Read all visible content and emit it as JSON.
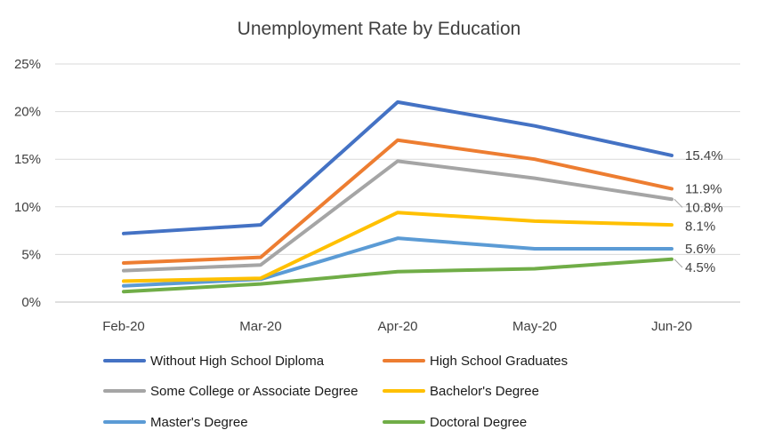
{
  "chart_data": {
    "type": "line",
    "title": "Unemployment Rate by Education",
    "xlabel": "",
    "ylabel": "",
    "categories": [
      "Feb-20",
      "Mar-20",
      "Apr-20",
      "May-20",
      "Jun-20"
    ],
    "ylim": [
      0,
      25
    ],
    "y_ticks": [
      "0%",
      "5%",
      "10%",
      "15%",
      "20%",
      "25%"
    ],
    "grid": true,
    "legend_position": "bottom",
    "series": [
      {
        "name": "Without High School Diploma",
        "color": "#4472C4",
        "values": [
          7.2,
          8.1,
          21.0,
          18.5,
          15.4
        ],
        "end_label": "15.4%"
      },
      {
        "name": "High School Graduates",
        "color": "#ED7D31",
        "values": [
          4.1,
          4.7,
          17.0,
          15.0,
          11.9
        ],
        "end_label": "11.9%"
      },
      {
        "name": "Some College or Associate Degree",
        "color": "#A5A5A5",
        "values": [
          3.3,
          3.9,
          14.8,
          13.0,
          10.8
        ],
        "end_label": "10.8%"
      },
      {
        "name": "Bachelor's Degree",
        "color": "#FFC000",
        "values": [
          2.2,
          2.5,
          9.4,
          8.5,
          8.1
        ],
        "end_label": "8.1%"
      },
      {
        "name": "Master's Degree",
        "color": "#5B9BD5",
        "values": [
          1.7,
          2.4,
          6.7,
          5.6,
          5.6
        ],
        "end_label": "5.6%"
      },
      {
        "name": "Doctoral Degree",
        "color": "#70AD47",
        "values": [
          1.1,
          1.9,
          3.2,
          3.5,
          4.5
        ],
        "end_label": "4.5%"
      }
    ]
  }
}
